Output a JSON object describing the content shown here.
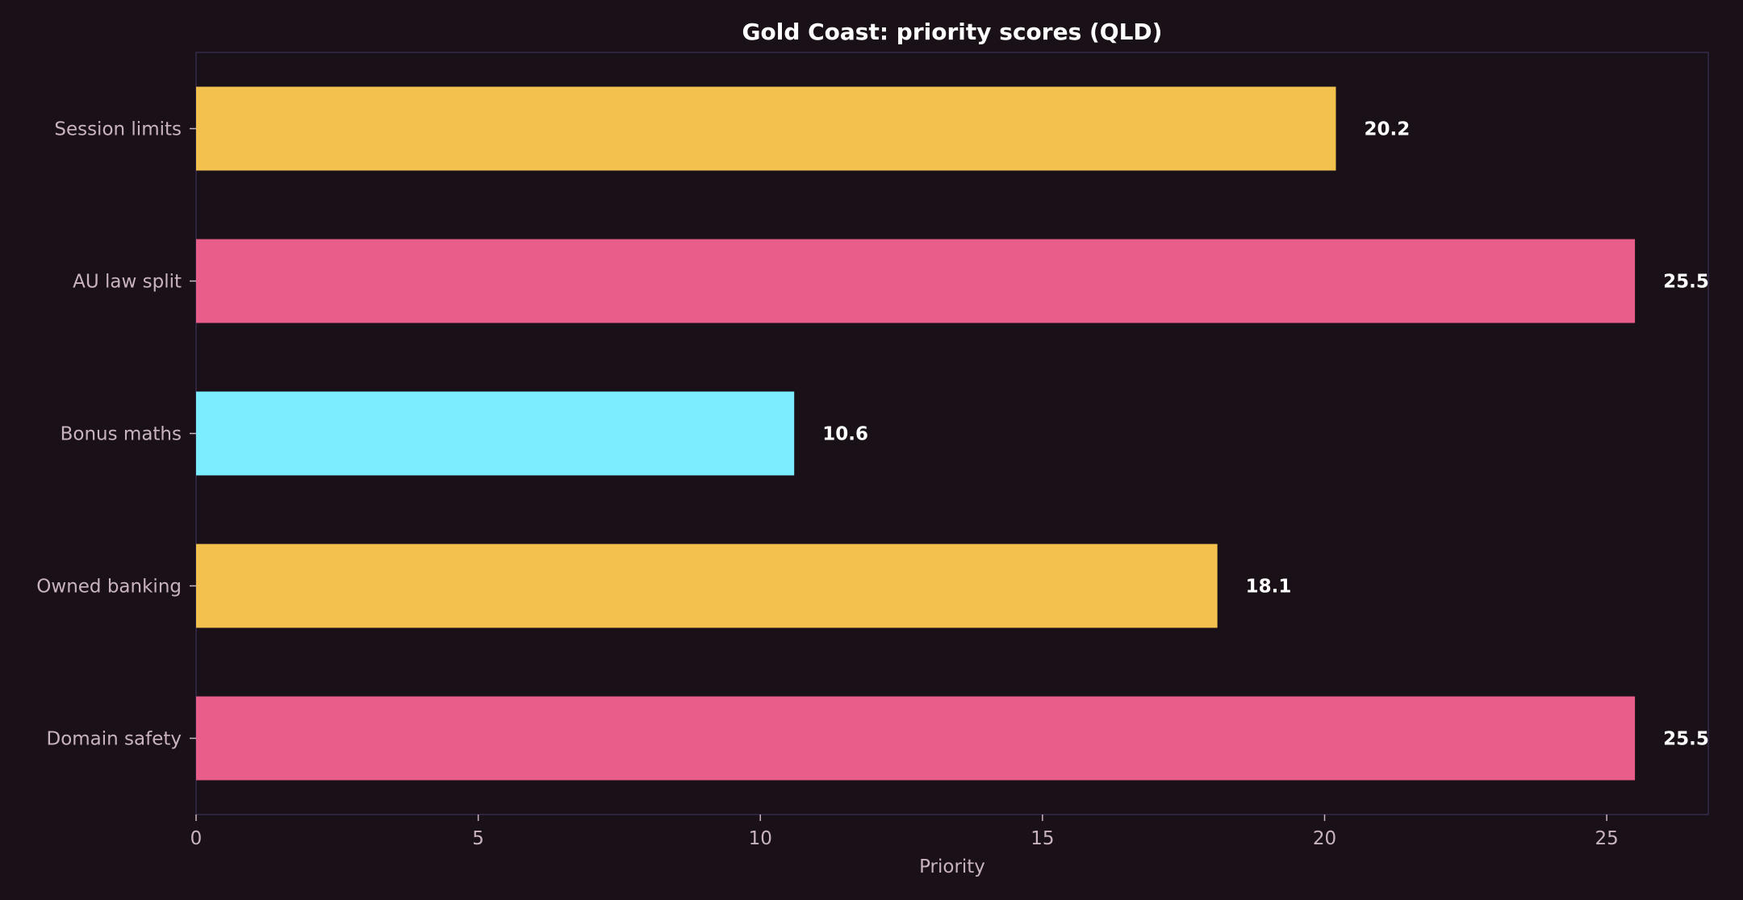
{
  "chart_data": {
    "type": "bar",
    "orientation": "horizontal",
    "title": "Gold Coast: priority scores (QLD)",
    "xlabel": "Priority",
    "ylabel": "",
    "xlim": [
      0,
      26.8
    ],
    "xticks": [
      0,
      5,
      10,
      15,
      20,
      25
    ],
    "grid": false,
    "categories": [
      "Session limits",
      "AU law split",
      "Bonus maths",
      "Owned banking",
      "Domain safety"
    ],
    "values": [
      20.2,
      25.5,
      10.6,
      18.1,
      25.5
    ],
    "value_labels": [
      "20.2",
      "25.5",
      "10.6",
      "18.1",
      "25.5"
    ],
    "bar_colors": [
      "#f2c14e",
      "#e85d8a",
      "#7aeeff",
      "#f2c14e",
      "#e85d8a"
    ]
  }
}
